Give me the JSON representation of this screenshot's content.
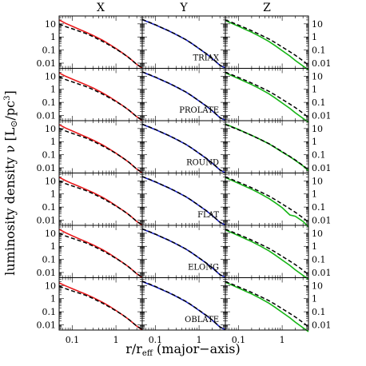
{
  "chart_data": {
    "type": "line",
    "xlabel": "r/r_eff (major−axis)",
    "xlabel_main": "r/r",
    "xlabel_sub": "eff",
    "xlabel_tail": " (major−axis)",
    "ylabel": "luminosity density ν [L⊙/pc³]",
    "ylabel_main": "luminosity density ν [L",
    "ylabel_sun": "⊙",
    "ylabel_mid": "/pc",
    "ylabel_sup": "3",
    "ylabel_end": "]",
    "xscale": "log",
    "yscale": "log",
    "xlim": [
      0.05,
      4.0
    ],
    "ylim": [
      0.004,
      40
    ],
    "xticklabels": [
      {
        "v": 0.1,
        "t": "0.1"
      },
      {
        "v": 1,
        "t": "1"
      }
    ],
    "yticklabels": [
      {
        "v": 10,
        "t": "10"
      },
      {
        "v": 1,
        "t": "1"
      },
      {
        "v": 0.1,
        "t": "0.1"
      },
      {
        "v": 0.01,
        "t": "0.01"
      }
    ],
    "columns": [
      "X",
      "Y",
      "Z"
    ],
    "column_colors": [
      "#e8191b",
      "#1b24c8",
      "#15b515"
    ],
    "rows": [
      "TRIAX",
      "PROLATE",
      "ROUND",
      "FLAT",
      "ELONG",
      "OBLATE"
    ],
    "x": [
      0.05,
      0.07,
      0.1,
      0.15,
      0.2,
      0.3,
      0.5,
      0.7,
      1.0,
      1.5,
      2.0,
      3.0,
      4.0
    ],
    "series": {
      "X": {
        "reference": [
          [
            9.8,
            6.2,
            4.2,
            2.6,
            1.9,
            1.05,
            0.45,
            0.24,
            0.12,
            0.05,
            0.025,
            0.008,
            0.0045
          ],
          [
            9.0,
            5.5,
            3.7,
            2.3,
            1.7,
            0.95,
            0.42,
            0.23,
            0.115,
            0.05,
            0.025,
            0.008,
            0.0045
          ],
          [
            10.5,
            6.5,
            4.3,
            2.7,
            1.95,
            1.07,
            0.46,
            0.25,
            0.125,
            0.052,
            0.026,
            0.008,
            0.0045
          ],
          [
            10.0,
            6.2,
            4.1,
            2.6,
            1.9,
            1.05,
            0.45,
            0.24,
            0.12,
            0.05,
            0.025,
            0.008,
            0.0045
          ],
          [
            10.0,
            6.2,
            4.1,
            2.6,
            1.9,
            1.05,
            0.45,
            0.24,
            0.12,
            0.05,
            0.025,
            0.008,
            0.0045
          ],
          [
            9.0,
            5.8,
            3.9,
            2.5,
            1.85,
            1.02,
            0.44,
            0.235,
            0.118,
            0.05,
            0.025,
            0.008,
            0.0045
          ]
        ],
        "model": [
          [
            20,
            11,
            6.5,
            3.6,
            2.4,
            1.3,
            0.55,
            0.28,
            0.13,
            0.052,
            0.026,
            0.008,
            0.004
          ],
          [
            18,
            10,
            6.0,
            3.4,
            2.3,
            1.25,
            0.52,
            0.27,
            0.125,
            0.05,
            0.025,
            0.008,
            0.004
          ],
          [
            20,
            11,
            6.5,
            3.6,
            2.4,
            1.3,
            0.55,
            0.28,
            0.13,
            0.052,
            0.026,
            0.008,
            0.004
          ],
          [
            19,
            10.5,
            6.2,
            3.5,
            2.35,
            1.28,
            0.54,
            0.28,
            0.128,
            0.051,
            0.026,
            0.008,
            0.004
          ],
          [
            20,
            11,
            6.3,
            3.5,
            2.35,
            1.28,
            0.54,
            0.28,
            0.128,
            0.051,
            0.026,
            0.008,
            0.004
          ],
          [
            16,
            9.5,
            5.8,
            3.3,
            2.25,
            1.22,
            0.52,
            0.27,
            0.125,
            0.05,
            0.025,
            0.008,
            0.004
          ]
        ]
      },
      "Y": {
        "reference": [
          [
            22,
            14,
            8.5,
            4.6,
            3.0,
            1.55,
            0.62,
            0.3,
            0.13,
            0.05,
            0.024,
            0.007,
            0.004
          ],
          [
            22,
            14,
            8.5,
            4.6,
            3.0,
            1.55,
            0.62,
            0.3,
            0.13,
            0.05,
            0.024,
            0.007,
            0.004
          ],
          [
            22,
            14,
            8.5,
            4.6,
            3.0,
            1.55,
            0.62,
            0.3,
            0.13,
            0.05,
            0.024,
            0.007,
            0.004
          ],
          [
            22,
            14,
            8.5,
            4.6,
            3.0,
            1.55,
            0.62,
            0.3,
            0.13,
            0.05,
            0.024,
            0.007,
            0.004
          ],
          [
            22,
            14,
            8.5,
            4.6,
            3.0,
            1.55,
            0.62,
            0.3,
            0.13,
            0.05,
            0.024,
            0.007,
            0.004
          ],
          [
            22,
            14,
            8.5,
            4.6,
            3.0,
            1.55,
            0.62,
            0.3,
            0.13,
            0.05,
            0.024,
            0.007,
            0.004
          ]
        ],
        "model": [
          [
            21,
            13.5,
            8.3,
            4.5,
            2.95,
            1.52,
            0.61,
            0.3,
            0.128,
            0.049,
            0.023,
            0.0068,
            0.0042
          ],
          [
            21,
            13.5,
            8.3,
            4.5,
            2.95,
            1.52,
            0.61,
            0.3,
            0.128,
            0.049,
            0.023,
            0.0068,
            0.0042
          ],
          [
            21,
            13.5,
            8.3,
            4.5,
            2.95,
            1.52,
            0.61,
            0.3,
            0.128,
            0.049,
            0.023,
            0.0068,
            0.0042
          ],
          [
            21,
            13.5,
            8.3,
            4.5,
            2.95,
            1.52,
            0.61,
            0.3,
            0.128,
            0.049,
            0.023,
            0.0068,
            0.0042
          ],
          [
            21,
            13.5,
            8.3,
            4.5,
            2.95,
            1.52,
            0.61,
            0.3,
            0.128,
            0.049,
            0.023,
            0.0068,
            0.0042
          ],
          [
            20,
            13,
            8.1,
            4.4,
            2.9,
            1.5,
            0.6,
            0.29,
            0.126,
            0.048,
            0.023,
            0.0068,
            0.0042
          ]
        ]
      },
      "Z": {
        "reference": [
          [
            20,
            13,
            8,
            4.5,
            3.0,
            1.6,
            0.7,
            0.36,
            0.17,
            0.075,
            0.04,
            0.015,
            0.007
          ],
          [
            20,
            13,
            8,
            4.5,
            3.0,
            1.6,
            0.7,
            0.36,
            0.17,
            0.075,
            0.04,
            0.015,
            0.007
          ],
          [
            20,
            13,
            8,
            4.5,
            3.0,
            1.6,
            0.7,
            0.36,
            0.17,
            0.075,
            0.04,
            0.015,
            0.007
          ],
          [
            20,
            13,
            8,
            4.5,
            3.0,
            1.6,
            0.7,
            0.36,
            0.17,
            0.075,
            0.04,
            0.015,
            0.007
          ],
          [
            20,
            13,
            8,
            4.5,
            3.0,
            1.6,
            0.7,
            0.36,
            0.17,
            0.075,
            0.04,
            0.015,
            0.007
          ],
          [
            20,
            13,
            8,
            4.5,
            3.0,
            1.6,
            0.7,
            0.36,
            0.17,
            0.075,
            0.04,
            0.015,
            0.007
          ]
        ],
        "model": [
          [
            18,
            11,
            6.5,
            3.5,
            2.3,
            1.15,
            0.45,
            0.21,
            0.09,
            0.035,
            0.016,
            0.006,
            0.003
          ],
          [
            18,
            11,
            6.5,
            3.5,
            2.3,
            1.15,
            0.45,
            0.21,
            0.09,
            0.035,
            0.016,
            0.006,
            0.003
          ],
          [
            22,
            14,
            8.5,
            4.6,
            3.0,
            1.6,
            0.68,
            0.34,
            0.16,
            0.07,
            0.037,
            0.014,
            0.006
          ],
          [
            18,
            11,
            6.5,
            3.5,
            2.3,
            1.15,
            0.45,
            0.21,
            0.09,
            0.025,
            0.02,
            0.008,
            0.003
          ],
          [
            18,
            11,
            6.5,
            3.5,
            2.3,
            1.15,
            0.45,
            0.21,
            0.09,
            0.035,
            0.016,
            0.006,
            0.003
          ],
          [
            18,
            11,
            6.5,
            3.5,
            2.3,
            1.15,
            0.45,
            0.21,
            0.09,
            0.035,
            0.016,
            0.006,
            0.003
          ]
        ]
      }
    }
  }
}
